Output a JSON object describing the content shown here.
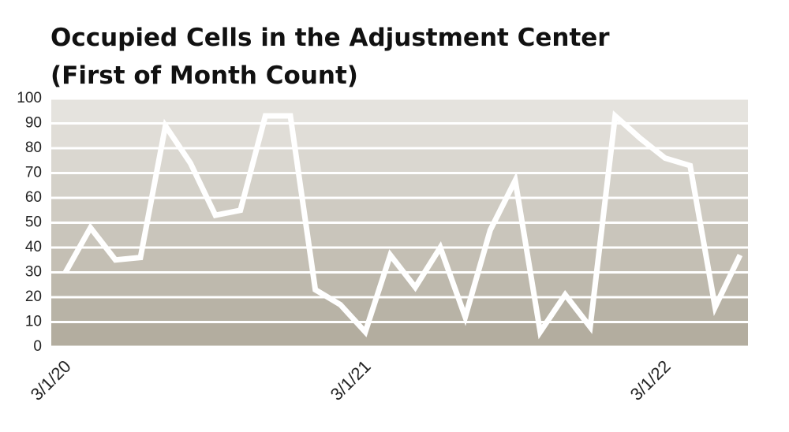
{
  "chart_data": {
    "type": "line",
    "title": "Occupied Cells in the Adjustment Center",
    "subtitle": "(First of Month Count)",
    "categories": [
      "3/1/20",
      null,
      null,
      null,
      null,
      null,
      null,
      null,
      null,
      null,
      null,
      null,
      "3/1/21",
      null,
      null,
      null,
      null,
      null,
      null,
      null,
      null,
      null,
      null,
      null,
      "3/1/22",
      null,
      null,
      null
    ],
    "series": [
      {
        "name": "Occupied Cells",
        "color": "#ffffff",
        "values": [
          30,
          48,
          35,
          36,
          89,
          74,
          53,
          55,
          93,
          93,
          23,
          17,
          6,
          37,
          24,
          40,
          12,
          47,
          67,
          6,
          21,
          8,
          93,
          84,
          76,
          73,
          16,
          37
        ]
      }
    ],
    "ylim": [
      0,
      100
    ],
    "yticks": [
      0,
      10,
      20,
      30,
      40,
      50,
      60,
      70,
      80,
      90,
      100
    ],
    "grid": true
  }
}
